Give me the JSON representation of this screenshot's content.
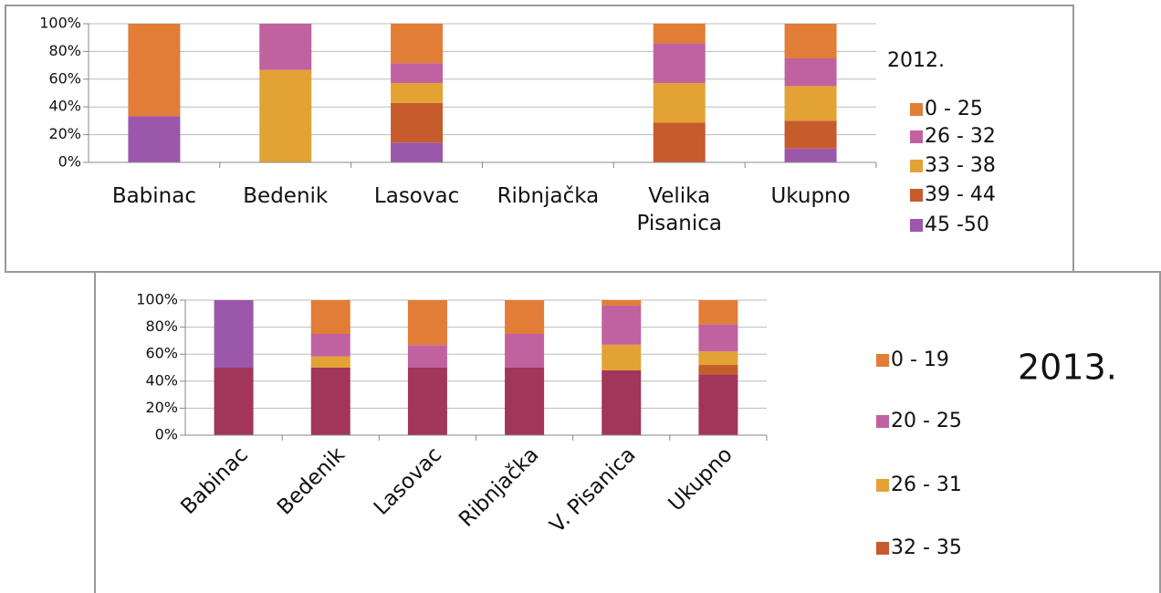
{
  "chart_data": [
    {
      "type": "stacked_bar",
      "title": "2012.",
      "categories": [
        "Babinac",
        "Bedenik",
        "Lasovac",
        "Ribnjačka",
        "Velika Pisanica",
        "Ukupno"
      ],
      "series": [
        {
          "name": "45 -50",
          "color": "#9b57a9",
          "values": [
            33.3,
            0,
            14.3,
            0,
            0,
            10
          ]
        },
        {
          "name": "39 - 44",
          "color": "#c65b2c",
          "values": [
            0,
            0,
            28.6,
            0,
            28.6,
            20
          ]
        },
        {
          "name": "33 - 38",
          "color": "#e2a334",
          "values": [
            0,
            66.7,
            14.3,
            0,
            28.6,
            25
          ]
        },
        {
          "name": "26 - 32",
          "color": "#c162a0",
          "values": [
            0,
            33.3,
            14.3,
            0,
            28.6,
            20
          ]
        },
        {
          "name": "0 - 25",
          "color": "#e17d37",
          "values": [
            66.7,
            0,
            28.6,
            0,
            14.3,
            25
          ]
        }
      ],
      "ylim": [
        0,
        100
      ],
      "yticks": [
        {
          "value": 0,
          "label": "0%"
        },
        {
          "value": 20,
          "label": "20%"
        },
        {
          "value": 40,
          "label": "40%"
        },
        {
          "value": 60,
          "label": "60%"
        },
        {
          "value": 80,
          "label": "80%"
        },
        {
          "value": 100,
          "label": "100%"
        }
      ],
      "grid": true
    },
    {
      "type": "stacked_bar",
      "title": "2013.",
      "categories": [
        "Babinac",
        "Bedenik",
        "Lasovac",
        "Ribnjačka",
        "V. Pisanica",
        "Ukupno"
      ],
      "series": [
        {
          "name": null,
          "color": "#a2355a",
          "values": [
            50,
            50,
            50,
            50,
            48,
            45
          ]
        },
        {
          "name": null,
          "color": "#9b57a9",
          "values": [
            50,
            0,
            0,
            0,
            0,
            0
          ]
        },
        {
          "name": "32 - 35",
          "color": "#c65b2c",
          "values": [
            0,
            0,
            0,
            0,
            0,
            7
          ]
        },
        {
          "name": "26 - 31",
          "color": "#e2a334",
          "values": [
            0,
            8.3,
            0,
            0,
            19,
            10
          ]
        },
        {
          "name": "20 - 25",
          "color": "#c162a0",
          "values": [
            0,
            16.7,
            16.7,
            25,
            29,
            20
          ]
        },
        {
          "name": "0 - 19",
          "color": "#e17d37",
          "values": [
            0,
            25,
            33.3,
            25,
            4,
            18
          ]
        }
      ],
      "ylim": [
        0,
        100
      ],
      "yticks": [
        {
          "value": 0,
          "label": "0%"
        },
        {
          "value": 20,
          "label": "20%"
        },
        {
          "value": 40,
          "label": "40%"
        },
        {
          "value": 60,
          "label": "60%"
        },
        {
          "value": 80,
          "label": "80%"
        },
        {
          "value": 100,
          "label": "100%"
        }
      ],
      "grid": true
    }
  ]
}
